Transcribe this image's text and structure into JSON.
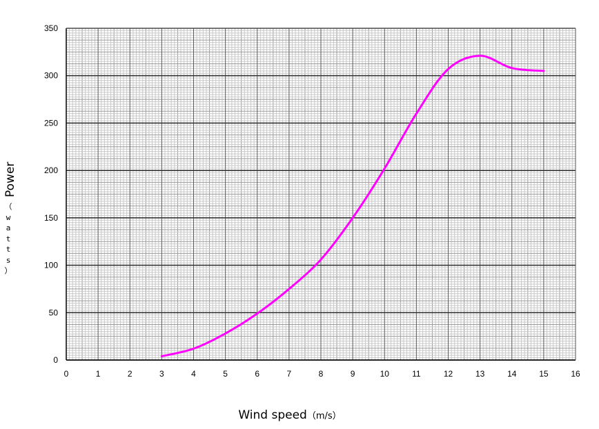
{
  "chart_data": {
    "type": "line",
    "title": "",
    "xlabel_main": "Wind speed",
    "xlabel_unit": "（m/s）",
    "ylabel_main": "Power",
    "ylabel_unit": "（watts）",
    "xlim": [
      0,
      16
    ],
    "ylim": [
      0,
      350
    ],
    "x_ticks": [
      0,
      1,
      2,
      3,
      4,
      5,
      6,
      7,
      8,
      9,
      10,
      11,
      12,
      13,
      14,
      15,
      16
    ],
    "y_ticks": [
      0,
      50,
      100,
      150,
      200,
      250,
      300,
      350
    ],
    "grid": true,
    "series": [
      {
        "color": "#ff00ff",
        "x": [
          3,
          4,
          5,
          6,
          7,
          8,
          9,
          10,
          11,
          12,
          13,
          14,
          15
        ],
        "y": [
          4,
          12,
          28,
          49,
          75,
          106,
          150,
          202,
          260,
          307,
          321,
          308,
          305
        ]
      }
    ]
  }
}
